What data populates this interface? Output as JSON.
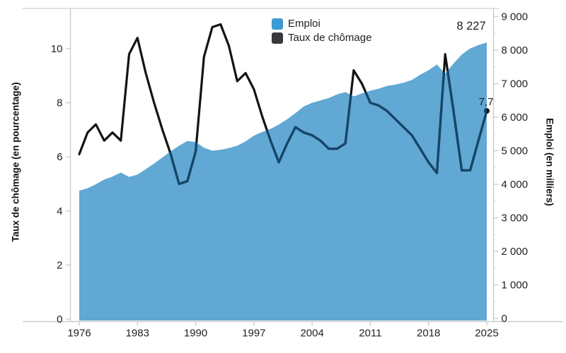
{
  "legend": {
    "items": [
      {
        "label": "Emploi",
        "color": "#3E9AD3"
      },
      {
        "label": "Taux de chômage",
        "color": "#37373D"
      }
    ]
  },
  "annotations": {
    "last_emploi": "8 227",
    "last_taux": "7,7"
  },
  "axes": {
    "left_title": "Taux de chômage (en pourcentage)",
    "right_title": "Emploi (en milliers)"
  },
  "chart_data": {
    "type": "area",
    "subtype": "dual-axis area + line",
    "grid": false,
    "legend_position": "top-center",
    "years": [
      1976,
      1977,
      1978,
      1979,
      1980,
      1981,
      1982,
      1983,
      1984,
      1985,
      1986,
      1987,
      1988,
      1989,
      1990,
      1991,
      1992,
      1993,
      1994,
      1995,
      1996,
      1997,
      1998,
      1999,
      2000,
      2001,
      2002,
      2003,
      2004,
      2005,
      2006,
      2007,
      2008,
      2009,
      2010,
      2011,
      2012,
      2013,
      2014,
      2015,
      2016,
      2017,
      2018,
      2019,
      2020,
      2021,
      2022,
      2023,
      2024,
      2025
    ],
    "series": [
      {
        "name": "Emploi",
        "type": "area",
        "y_axis": "right",
        "color": "#61A8D4",
        "values": [
          3810,
          3880,
          4000,
          4140,
          4230,
          4350,
          4220,
          4290,
          4450,
          4620,
          4800,
          4980,
          5150,
          5290,
          5260,
          5090,
          5000,
          5030,
          5080,
          5150,
          5280,
          5450,
          5560,
          5650,
          5780,
          5940,
          6120,
          6320,
          6430,
          6500,
          6570,
          6680,
          6750,
          6620,
          6710,
          6790,
          6850,
          6930,
          6970,
          7030,
          7110,
          7270,
          7400,
          7570,
          7300,
          7600,
          7870,
          8050,
          8150,
          8227
        ]
      },
      {
        "name": "Taux de chômage",
        "type": "line",
        "y_axis": "left",
        "color": "#141414",
        "color_inside_area": "#14466B",
        "values": [
          6.1,
          6.9,
          7.2,
          6.6,
          6.9,
          6.6,
          9.8,
          10.4,
          9.1,
          8.0,
          7.0,
          6.1,
          5.0,
          5.1,
          6.2,
          9.7,
          10.8,
          10.9,
          10.1,
          8.8,
          9.1,
          8.5,
          7.5,
          6.6,
          5.8,
          6.5,
          7.1,
          6.9,
          6.8,
          6.6,
          6.3,
          6.3,
          6.5,
          9.2,
          8.7,
          8.0,
          7.9,
          7.7,
          7.4,
          7.1,
          6.8,
          6.3,
          5.8,
          5.4,
          9.8,
          7.7,
          5.5,
          5.5,
          6.6,
          7.7
        ]
      }
    ],
    "left_axis": {
      "title": "Taux de chômage (en pourcentage)",
      "ticks": [
        0,
        2,
        4,
        6,
        8,
        10
      ],
      "range": [
        0,
        11.5
      ]
    },
    "right_axis": {
      "title": "Emploi (en milliers)",
      "ticks": [
        0,
        1000,
        2000,
        3000,
        4000,
        5000,
        6000,
        7000,
        8000,
        9000
      ],
      "minor_tick_step": 500,
      "range": [
        0,
        9300
      ]
    },
    "x_axis": {
      "tick_years": [
        1976,
        1983,
        1990,
        1997,
        2004,
        2011,
        2018,
        2025
      ]
    },
    "point_labels": [
      {
        "series": "Emploi",
        "year": 2025,
        "text": "8 227"
      },
      {
        "series": "Taux de chômage",
        "year": 2025,
        "text": "7,7",
        "marker": "dot"
      }
    ]
  }
}
